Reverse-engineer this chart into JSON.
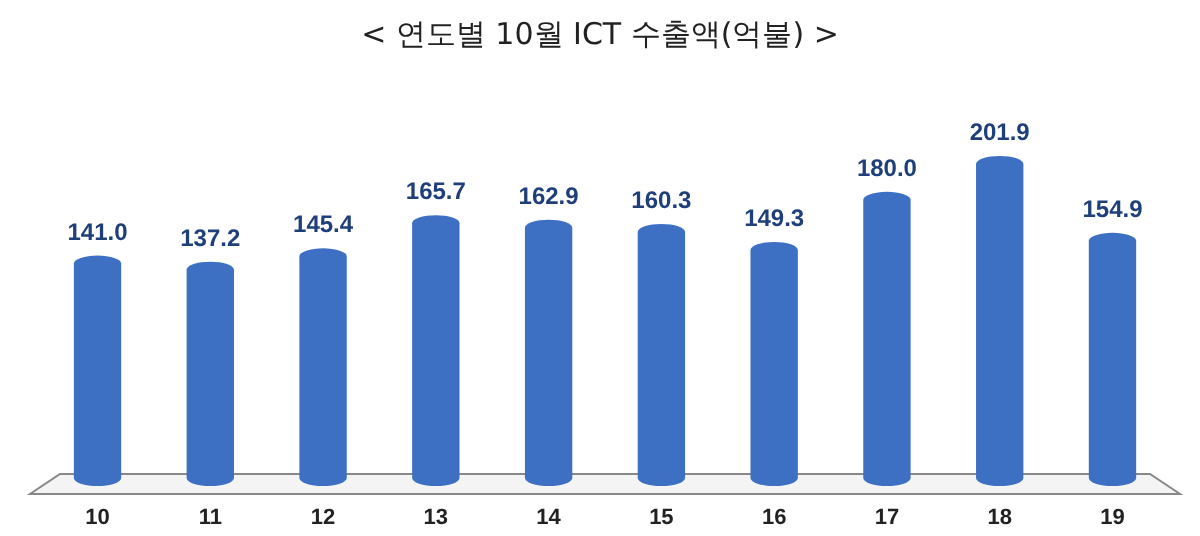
{
  "chart_data": {
    "type": "bar",
    "title": "< 연도별 10월 ICT 수출액(억불) >",
    "categories": [
      "10",
      "11",
      "12",
      "13",
      "14",
      "15",
      "16",
      "17",
      "18",
      "19"
    ],
    "values": [
      141.0,
      137.2,
      145.4,
      165.7,
      162.9,
      160.3,
      149.3,
      180.0,
      201.9,
      154.9
    ],
    "value_labels": [
      "141.0",
      "137.2",
      "145.4",
      "165.7",
      "162.9",
      "160.3",
      "149.3",
      "180.0",
      "201.9",
      "154.9"
    ],
    "color": "#3d70c2"
  }
}
